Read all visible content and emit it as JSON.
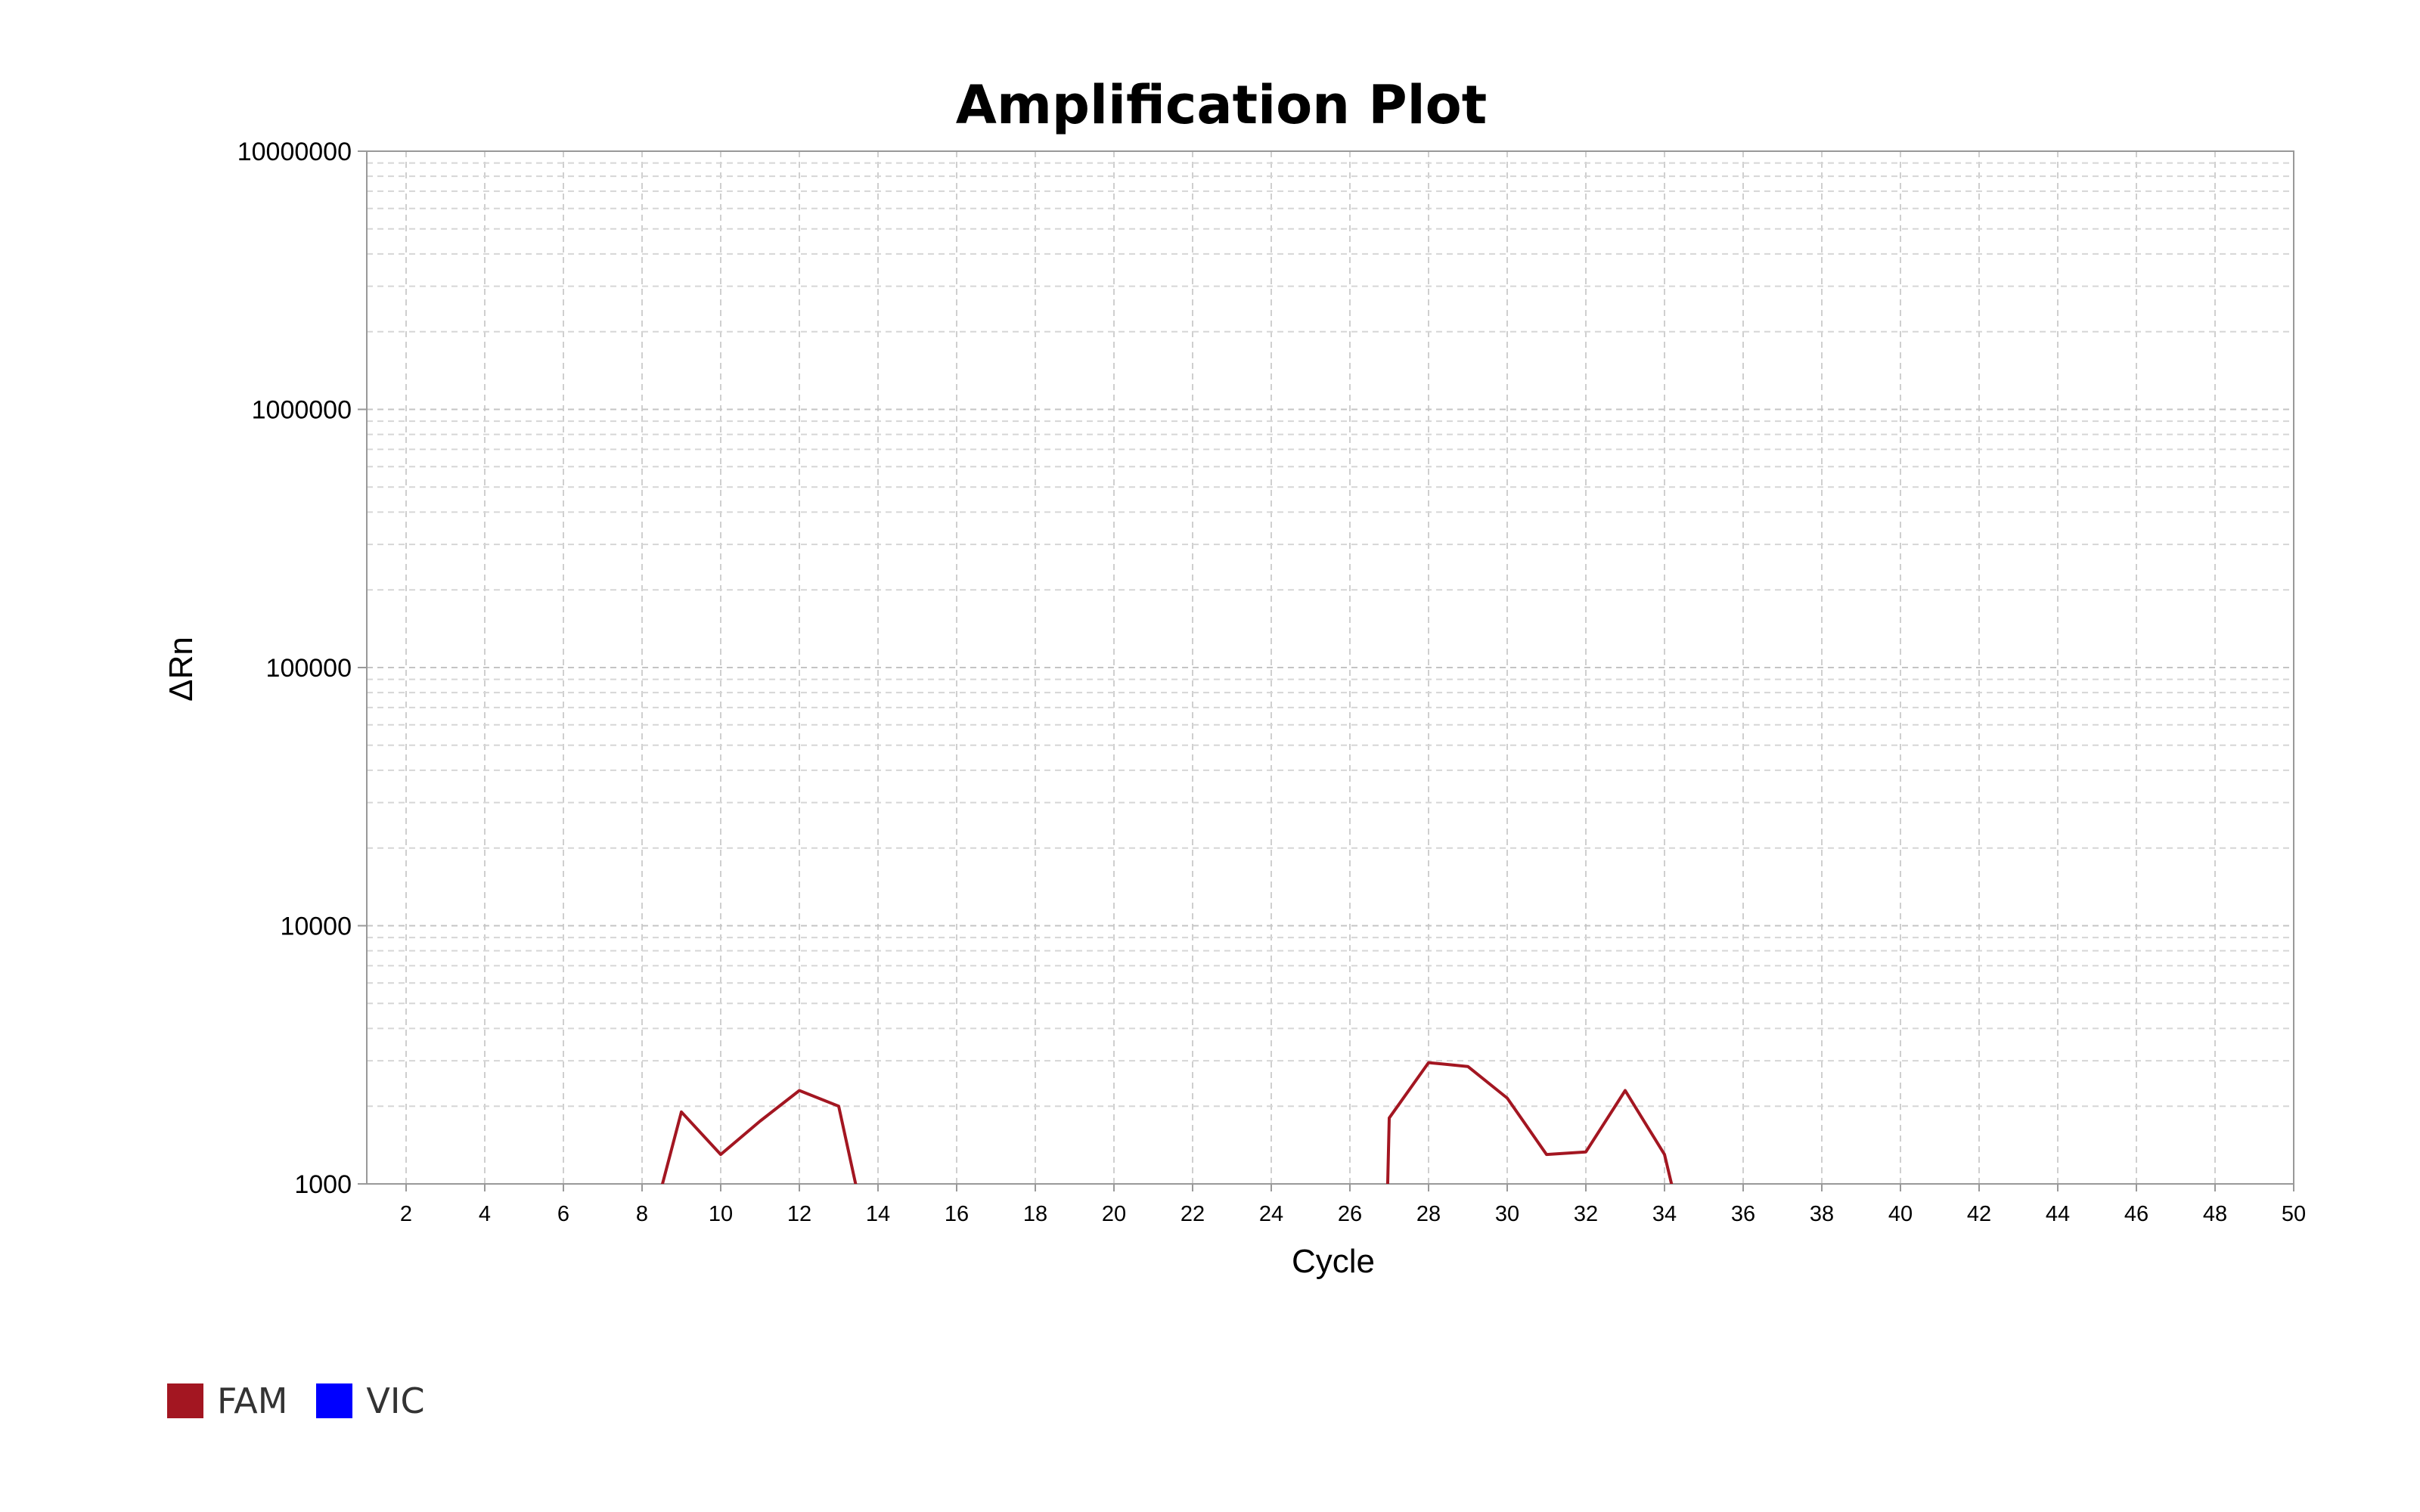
{
  "chart_data": {
    "type": "line",
    "title": "Amplification Plot",
    "xlabel": "Cycle",
    "ylabel": "ΔRn",
    "xlim": [
      1,
      50
    ],
    "ylim": [
      1000,
      10000000
    ],
    "yscale": "log",
    "grid": true,
    "x_ticks": [
      2,
      4,
      6,
      8,
      10,
      12,
      14,
      16,
      18,
      20,
      22,
      24,
      26,
      28,
      30,
      32,
      34,
      36,
      38,
      40,
      42,
      44,
      46,
      48,
      50
    ],
    "y_ticks": [
      1000,
      10000,
      100000,
      1000000,
      10000000
    ],
    "y_tick_labels": [
      "1000",
      "10000",
      "100000",
      "1000000",
      "10000000"
    ],
    "legend_position": "bottom-left",
    "series": [
      {
        "name": "FAM",
        "color": "#a31621",
        "points": [
          [
            8,
            500
          ],
          [
            9,
            1900
          ],
          [
            10,
            1300
          ],
          [
            11,
            1750
          ],
          [
            12,
            2300
          ],
          [
            13,
            2000
          ],
          [
            14,
            400
          ],
          [
            26.9,
            400
          ],
          [
            27,
            1800
          ],
          [
            28,
            2950
          ],
          [
            29,
            2850
          ],
          [
            30,
            2150
          ],
          [
            31,
            1300
          ],
          [
            32,
            1330
          ],
          [
            33,
            2300
          ],
          [
            34,
            1300
          ],
          [
            34.8,
            400
          ]
        ]
      },
      {
        "name": "VIC",
        "color": "#0000ff",
        "points": []
      }
    ]
  }
}
